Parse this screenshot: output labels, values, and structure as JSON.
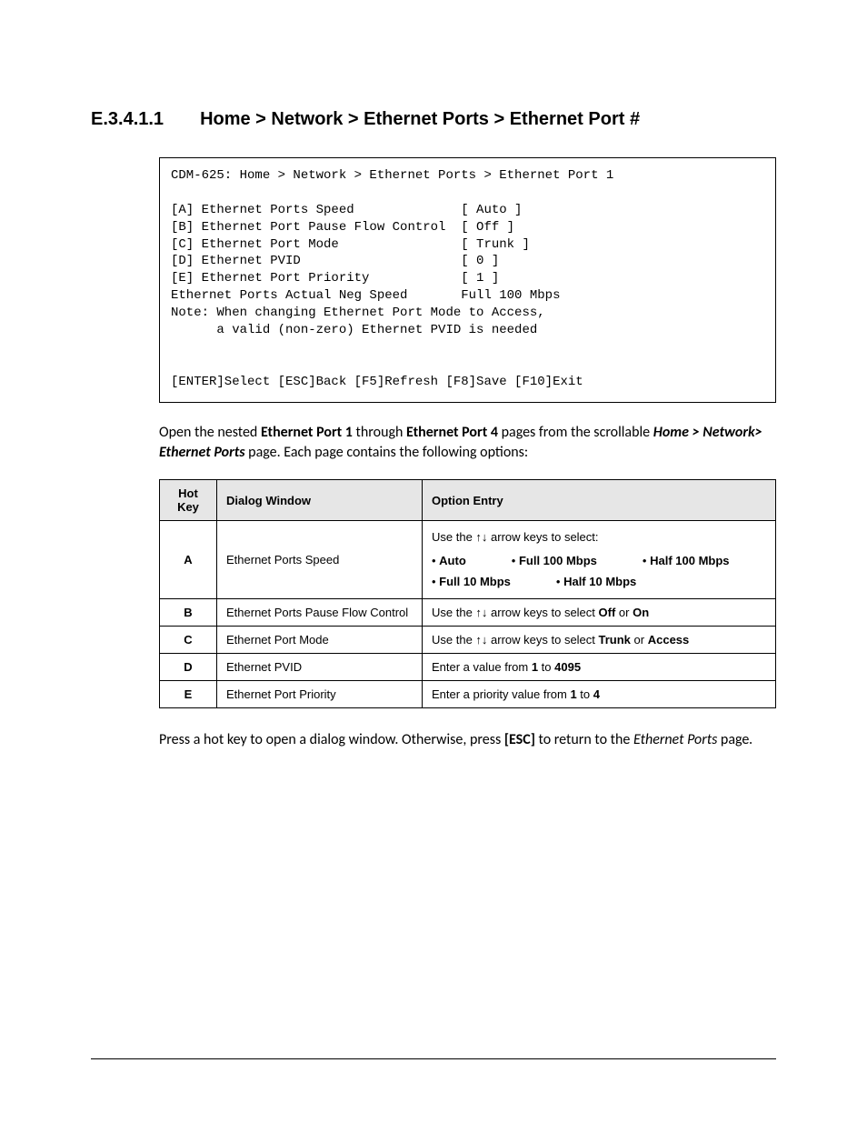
{
  "heading": {
    "number": "E.3.4.1.1",
    "title": "Home > Network > Ethernet Ports > Ethernet Port #"
  },
  "terminal": {
    "breadcrumb": "CDM-625: Home > Network > Ethernet Ports > Ethernet Port 1",
    "lines": [
      "[A] Ethernet Ports Speed              [ Auto ]",
      "[B] Ethernet Port Pause Flow Control  [ Off ]",
      "[C] Ethernet Port Mode                [ Trunk ]",
      "[D] Ethernet PVID                     [ 0 ]",
      "[E] Ethernet Port Priority            [ 1 ]",
      "Ethernet Ports Actual Neg Speed       Full 100 Mbps",
      "Note: When changing Ethernet Port Mode to Access,",
      "      a valid (non-zero) Ethernet PVID is needed"
    ],
    "footer": "[ENTER]Select [ESC]Back [F5]Refresh [F8]Save [F10]Exit"
  },
  "intro": {
    "t1": "Open the nested ",
    "b1": "Ethernet Port 1",
    "t2": " through ",
    "b2": "Ethernet Port 4",
    "t3": " pages from the scrollable ",
    "i1": "Home > Network> Ethernet Ports",
    "t4": " page. Each page contains the following options:"
  },
  "table": {
    "headers": {
      "hk": "Hot Key",
      "dw": "Dialog Window",
      "oe": "Option Entry"
    },
    "rowA": {
      "key": "A",
      "dw": "Ethernet Ports Speed",
      "lead": "Use the ↑↓ arrow keys to select:",
      "opts": {
        "o1": "Auto",
        "o2": "Full 100 Mbps",
        "o3": "Half 100 Mbps",
        "o4": "Full 10 Mbps",
        "o5": "Half 10 Mbps"
      }
    },
    "rowB": {
      "key": "B",
      "dw": "Ethernet Ports Pause Flow Control",
      "t1": "Use the ↑↓ arrow keys to select ",
      "b1": "Off",
      "t2": " or ",
      "b2": "On"
    },
    "rowC": {
      "key": "C",
      "dw": "Ethernet Port Mode",
      "t1": "Use the ↑↓ arrow keys to select ",
      "b1": "Trunk",
      "t2": " or ",
      "b2": "Access"
    },
    "rowD": {
      "key": "D",
      "dw": "Ethernet PVID",
      "t1": "Enter a value from ",
      "b1": "1",
      "t2": " to ",
      "b2": "4095"
    },
    "rowE": {
      "key": "E",
      "dw": "Ethernet Port Priority",
      "t1": "Enter a priority value from ",
      "b1": "1",
      "t2": " to ",
      "b2": "4"
    }
  },
  "footerPara": {
    "t1": "Press a hot key to open a dialog window. Otherwise, press ",
    "b1": "[ESC]",
    "t2": " to return to the ",
    "i1": "Ethernet Ports",
    "t3": " page",
    "i2": "."
  }
}
